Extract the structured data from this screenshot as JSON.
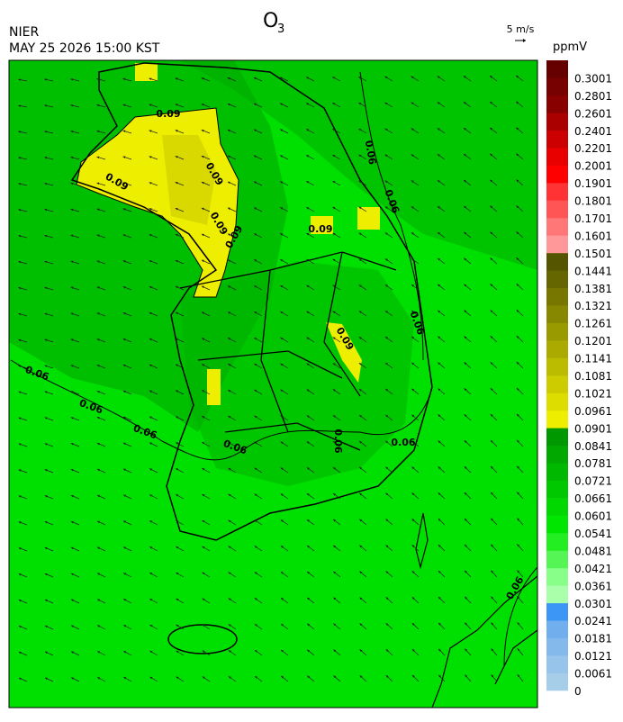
{
  "header": {
    "title": "O",
    "title_subscript": "3",
    "agency": "NIER",
    "timestamp": "MAY 25 2026 15:00 KST",
    "wind_scale": "5 m/s"
  },
  "colorbar": {
    "unit": "ppmV",
    "labels": [
      "0",
      "0.0061",
      "0.0121",
      "0.0181",
      "0.0241",
      "0.0301",
      "0.0361",
      "0.0421",
      "0.0481",
      "0.0541",
      "0.0601",
      "0.0661",
      "0.0721",
      "0.0781",
      "0.0841",
      "0.0901",
      "0.0961",
      "0.1021",
      "0.1081",
      "0.1141",
      "0.1201",
      "0.1261",
      "0.1321",
      "0.1381",
      "0.1441",
      "0.1501",
      "0.1601",
      "0.1701",
      "0.1801",
      "0.1901",
      "0.2001",
      "0.2201",
      "0.2401",
      "0.2601",
      "0.2801",
      "0.3001"
    ],
    "colors": [
      "#a6cee8",
      "#96c4ea",
      "#84b9ec",
      "#70aeee",
      "#3c96f5",
      "#aaffaa",
      "#88ff88",
      "#55f555",
      "#22ee22",
      "#00e600",
      "#00d800",
      "#00c800",
      "#00b800",
      "#00a800",
      "#009800",
      "#eeee00",
      "#dddd00",
      "#cccc00",
      "#bbbb00",
      "#aaaa00",
      "#999900",
      "#888800",
      "#777700",
      "#666600",
      "#555500",
      "#ff9999",
      "#ff7777",
      "#ff5555",
      "#ff3333",
      "#ff0000",
      "#e80000",
      "#cc0000",
      "#aa0000",
      "#880000",
      "#770000",
      "#660000"
    ]
  },
  "contour_labels": [
    "0.09",
    "0.09",
    "0.09",
    "0.09",
    "0.09",
    "0.09",
    "0.09",
    "0.06",
    "0.06",
    "0.06",
    "0.06",
    "0.06",
    "0.06",
    "0.06",
    "0.06",
    "0.06",
    "0.06"
  ]
}
